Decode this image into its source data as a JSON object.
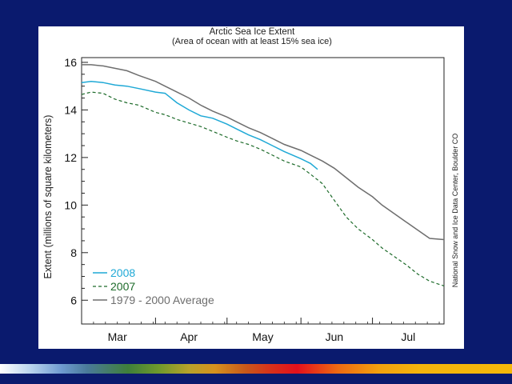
{
  "chart_data": {
    "type": "line",
    "title": "Arctic Sea Ice Extent",
    "subtitle": "(Area of ocean with at least 15% sea ice)",
    "ylabel": "Extent (millions of square kilometers)",
    "xlabel": "",
    "ylim": [
      5,
      16.2
    ],
    "xlim": [
      "Mar 1",
      "Jul 31"
    ],
    "month_labels": [
      "Mar",
      "Apr",
      "May",
      "Jun",
      "Jul"
    ],
    "y_ticks": [
      6,
      8,
      10,
      12,
      14,
      16
    ],
    "grid": false,
    "legend_position": "bottom-left",
    "credit": "National Snow and Ice Data Center, Boulder CO",
    "series": [
      {
        "name": "2008",
        "style": "solid",
        "color": "#1fa9d6",
        "x": [
          "Mar 1",
          "Mar 5",
          "Mar 10",
          "Mar 15",
          "Mar 20",
          "Mar 25",
          "Apr 1",
          "Apr 5",
          "Apr 10",
          "Apr 15",
          "Apr 20",
          "Apr 25",
          "May 1",
          "May 5",
          "May 10",
          "May 15",
          "May 20",
          "May 25",
          "Jun 1",
          "Jun 5",
          "Jun 8"
        ],
        "values": [
          15.15,
          15.2,
          15.15,
          15.05,
          15.0,
          14.9,
          14.75,
          14.7,
          14.3,
          14.0,
          13.75,
          13.65,
          13.4,
          13.2,
          12.95,
          12.75,
          12.5,
          12.25,
          11.95,
          11.75,
          11.5
        ]
      },
      {
        "name": "2007",
        "style": "dashed",
        "color": "#1d6b2a",
        "x": [
          "Mar 1",
          "Mar 5",
          "Mar 10",
          "Mar 15",
          "Mar 20",
          "Mar 25",
          "Apr 1",
          "Apr 5",
          "Apr 10",
          "Apr 15",
          "Apr 20",
          "Apr 25",
          "May 1",
          "May 5",
          "May 10",
          "May 15",
          "May 20",
          "May 25",
          "Jun 1",
          "Jun 5",
          "Jun 10",
          "Jun 15",
          "Jun 20",
          "Jun 25",
          "Jul 1",
          "Jul 5",
          "Jul 10",
          "Jul 15",
          "Jul 20",
          "Jul 25",
          "Jul 31"
        ],
        "values": [
          14.65,
          14.75,
          14.7,
          14.45,
          14.3,
          14.2,
          13.9,
          13.8,
          13.6,
          13.45,
          13.3,
          13.1,
          12.85,
          12.7,
          12.55,
          12.35,
          12.1,
          11.85,
          11.6,
          11.3,
          10.9,
          10.2,
          9.5,
          9.0,
          8.55,
          8.2,
          7.85,
          7.5,
          7.1,
          6.8,
          6.6
        ]
      },
      {
        "name": "1979 - 2000 Average",
        "style": "solid",
        "color": "#6e6e6e",
        "x": [
          "Mar 1",
          "Mar 5",
          "Mar 10",
          "Mar 15",
          "Mar 20",
          "Mar 25",
          "Apr 1",
          "Apr 5",
          "Apr 10",
          "Apr 15",
          "Apr 20",
          "Apr 25",
          "May 1",
          "May 5",
          "May 10",
          "May 15",
          "May 20",
          "May 25",
          "Jun 1",
          "Jun 5",
          "Jun 10",
          "Jun 15",
          "Jun 20",
          "Jun 25",
          "Jul 1",
          "Jul 5",
          "Jul 10",
          "Jul 15",
          "Jul 20",
          "Jul 25",
          "Jul 31"
        ],
        "values": [
          15.9,
          15.9,
          15.85,
          15.75,
          15.65,
          15.45,
          15.2,
          15.0,
          14.75,
          14.5,
          14.2,
          13.95,
          13.7,
          13.5,
          13.25,
          13.05,
          12.8,
          12.55,
          12.3,
          12.1,
          11.85,
          11.55,
          11.15,
          10.75,
          10.35,
          10.0,
          9.65,
          9.3,
          8.95,
          8.6,
          8.55
        ]
      }
    ]
  },
  "colors": {
    "slide_background": "#0a1a6e",
    "panel": "#ffffff",
    "axis": "#222222"
  }
}
